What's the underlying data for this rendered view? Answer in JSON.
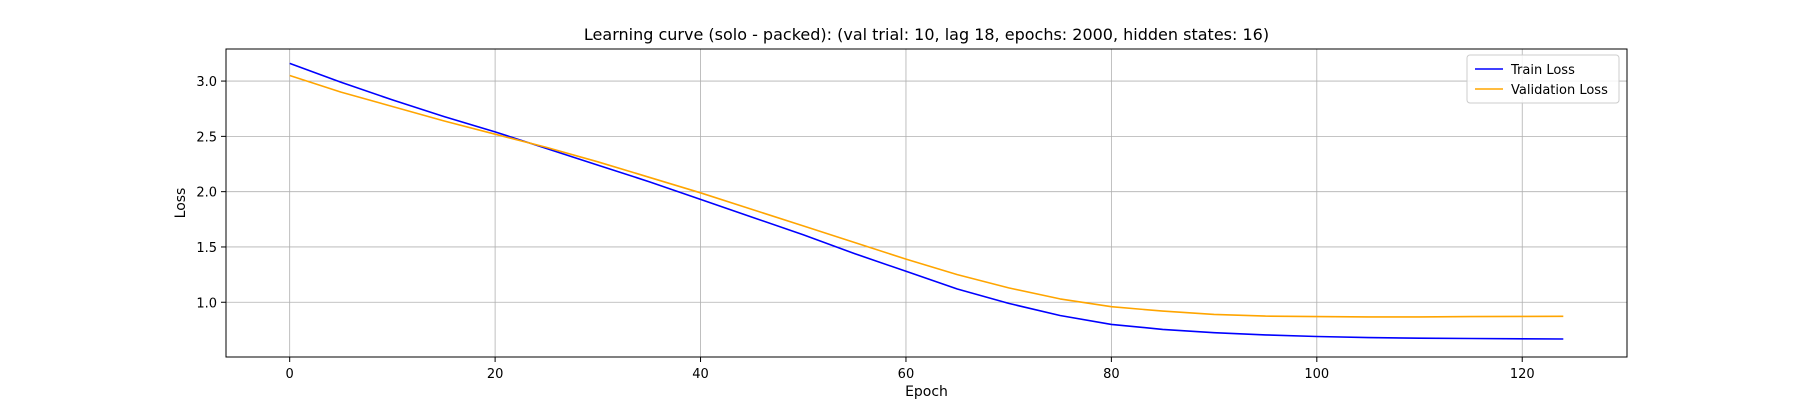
{
  "chart_data": {
    "type": "line",
    "title": "Learning curve (solo - packed): (val trial: 10, lag 18, epochs: 2000, hidden states: 16)",
    "xlabel": "Epoch",
    "ylabel": "Loss",
    "xlim": [
      -6.2,
      130.2
    ],
    "ylim": [
      0.505,
      3.29
    ],
    "xticks": [
      0,
      20,
      40,
      60,
      80,
      100,
      120
    ],
    "yticks": [
      1.0,
      1.5,
      2.0,
      2.5,
      3.0
    ],
    "xtick_labels": [
      "0",
      "20",
      "40",
      "60",
      "80",
      "100",
      "120"
    ],
    "ytick_labels": [
      "1.0",
      "1.5",
      "2.0",
      "2.5",
      "3.0"
    ],
    "grid": true,
    "legend_position": "top-right",
    "series": [
      {
        "name": "Train Loss",
        "color": "#0000ff",
        "points": [
          [
            0,
            3.16
          ],
          [
            5,
            2.99
          ],
          [
            10,
            2.83
          ],
          [
            15,
            2.68
          ],
          [
            20,
            2.54
          ],
          [
            25,
            2.39
          ],
          [
            30,
            2.24
          ],
          [
            35,
            2.09
          ],
          [
            40,
            1.93
          ],
          [
            45,
            1.77
          ],
          [
            50,
            1.61
          ],
          [
            55,
            1.44
          ],
          [
            60,
            1.28
          ],
          [
            65,
            1.12
          ],
          [
            70,
            0.99
          ],
          [
            75,
            0.88
          ],
          [
            80,
            0.8
          ],
          [
            85,
            0.755
          ],
          [
            90,
            0.725
          ],
          [
            95,
            0.705
          ],
          [
            100,
            0.69
          ],
          [
            105,
            0.68
          ],
          [
            110,
            0.675
          ],
          [
            115,
            0.672
          ],
          [
            120,
            0.67
          ],
          [
            124,
            0.668
          ]
        ]
      },
      {
        "name": "Validation Loss",
        "color": "#ffa500",
        "points": [
          [
            0,
            3.05
          ],
          [
            5,
            2.9
          ],
          [
            10,
            2.77
          ],
          [
            15,
            2.64
          ],
          [
            20,
            2.52
          ],
          [
            25,
            2.4
          ],
          [
            30,
            2.27
          ],
          [
            35,
            2.13
          ],
          [
            40,
            1.99
          ],
          [
            45,
            1.84
          ],
          [
            50,
            1.69
          ],
          [
            55,
            1.54
          ],
          [
            60,
            1.39
          ],
          [
            65,
            1.25
          ],
          [
            70,
            1.13
          ],
          [
            75,
            1.03
          ],
          [
            80,
            0.96
          ],
          [
            85,
            0.92
          ],
          [
            90,
            0.89
          ],
          [
            95,
            0.875
          ],
          [
            100,
            0.87
          ],
          [
            105,
            0.868
          ],
          [
            110,
            0.868
          ],
          [
            115,
            0.87
          ],
          [
            120,
            0.872
          ],
          [
            124,
            0.873
          ]
        ]
      }
    ]
  }
}
